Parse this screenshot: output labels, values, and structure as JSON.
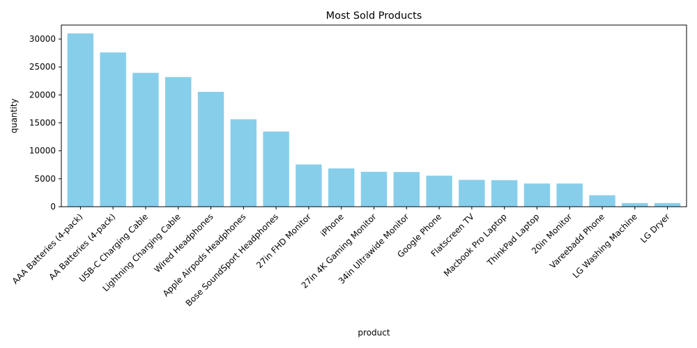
{
  "chart_data": {
    "type": "bar",
    "title": "Most Sold Products",
    "xlabel": "product",
    "ylabel": "quantity",
    "ylim": [
      0,
      32500
    ],
    "yticks": [
      0,
      5000,
      10000,
      15000,
      20000,
      25000,
      30000
    ],
    "grid": false,
    "bar_color": "#87CEEB",
    "categories": [
      "AAA Batteries (4-pack)",
      "AA Batteries (4-pack)",
      "USB-C Charging Cable",
      "Lightning Charging Cable",
      "Wired Headphones",
      "Apple Airpods Headphones",
      "Bose SoundSport Headphones",
      "27in FHD Monitor",
      "iPhone",
      "27in 4K Gaming Monitor",
      "34in Ultrawide Monitor",
      "Google Phone",
      "Flatscreen TV",
      "Macbook Pro Laptop",
      "ThinkPad Laptop",
      "20in Monitor",
      "Vareebadd Phone",
      "LG Washing Machine",
      "LG Dryer"
    ],
    "values": [
      31000,
      27600,
      23950,
      23200,
      20550,
      15650,
      13450,
      7550,
      6850,
      6250,
      6200,
      5550,
      4800,
      4750,
      4150,
      4150,
      2050,
      650,
      650
    ]
  }
}
